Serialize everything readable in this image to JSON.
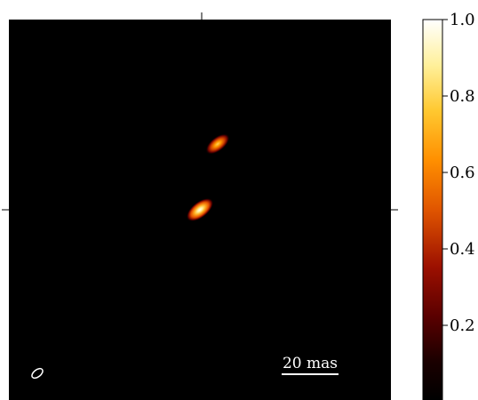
{
  "image": {
    "background_color": "#000000",
    "scale_bar_label": "20 mas",
    "colorbar_ticks": [
      "1.0",
      "0.8",
      "0.6",
      "0.4",
      "0.2"
    ],
    "colormap": [
      "#000000",
      "#3b0000",
      "#8a0000",
      "#d23a00",
      "#ff8a00",
      "#ffd34a",
      "#fff6b8",
      "#ffffff"
    ],
    "sources": [
      {
        "intensity": 0.78
      },
      {
        "intensity": 1.0
      }
    ]
  }
}
